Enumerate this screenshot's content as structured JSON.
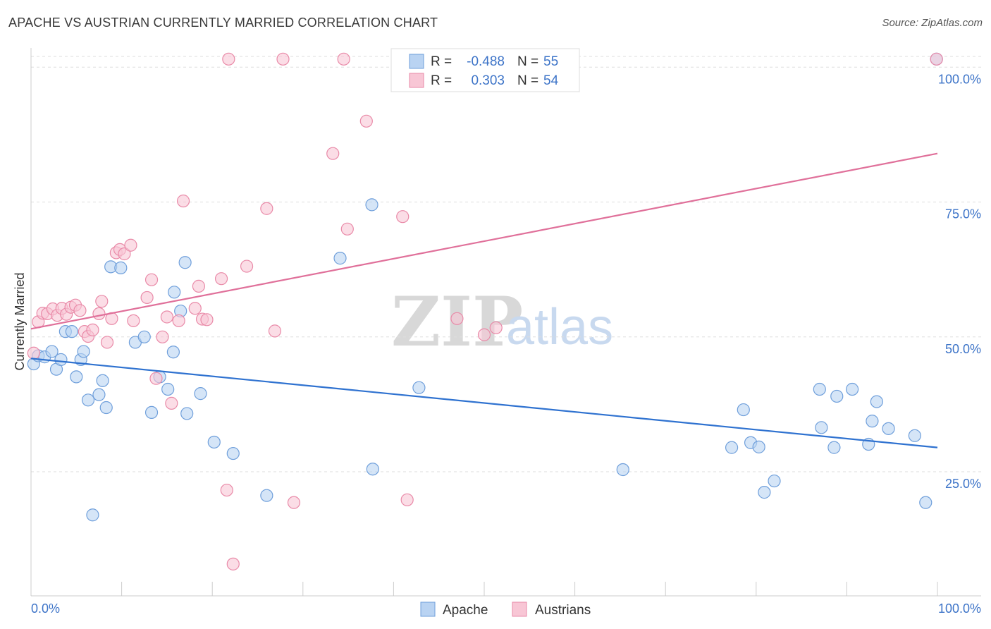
{
  "title": "APACHE VS AUSTRIAN CURRENTLY MARRIED CORRELATION CHART",
  "source": "Source: ZipAtlas.com",
  "watermark": {
    "zip": "ZIP",
    "atlas": "atlas"
  },
  "colors": {
    "apache_fill": "#b9d3f2",
    "apache_stroke": "#6f9fdb",
    "apache_line": "#2f72d0",
    "austrian_fill": "#f8c6d5",
    "austrian_stroke": "#e98aa8",
    "austrian_line": "#e0709a",
    "grid": "#dddddd",
    "tick_text": "#3d74c8"
  },
  "legend": {
    "rows": [
      {
        "r_label": "R =",
        "r_value": "-0.488",
        "n_label": "N =",
        "n_value": "55"
      },
      {
        "r_label": "R =",
        "r_value": "0.303",
        "n_label": "N =",
        "n_value": "54"
      }
    ]
  },
  "chart_data": {
    "type": "scatter",
    "title": "APACHE VS AUSTRIAN CURRENTLY MARRIED CORRELATION CHART",
    "xlabel": "",
    "ylabel": "Currently Married",
    "xlim": [
      0,
      100
    ],
    "ylim": [
      2,
      102
    ],
    "x_tick_labels": [
      "0.0%",
      "100.0%"
    ],
    "y_ticks": [
      25,
      50,
      75,
      100
    ],
    "y_tick_labels": [
      "25.0%",
      "50.0%",
      "75.0%",
      "100.0%"
    ],
    "grid": true,
    "legend_position": "top-center",
    "series": [
      {
        "name": "Apache",
        "color": "#6f9fdb",
        "trend": {
          "x": [
            0,
            100
          ],
          "y": [
            46.0,
            29.5
          ]
        },
        "points": [
          {
            "x": 0.3,
            "y": 45.0
          },
          {
            "x": 0.8,
            "y": 46.5
          },
          {
            "x": 1.5,
            "y": 46.3
          },
          {
            "x": 2.3,
            "y": 47.3
          },
          {
            "x": 2.8,
            "y": 44.0
          },
          {
            "x": 3.3,
            "y": 45.8
          },
          {
            "x": 3.8,
            "y": 51.0
          },
          {
            "x": 4.5,
            "y": 51.0
          },
          {
            "x": 5.0,
            "y": 42.6
          },
          {
            "x": 5.5,
            "y": 45.8
          },
          {
            "x": 5.8,
            "y": 47.3
          },
          {
            "x": 6.3,
            "y": 38.3
          },
          {
            "x": 6.8,
            "y": 17.0
          },
          {
            "x": 7.5,
            "y": 39.3
          },
          {
            "x": 7.9,
            "y": 41.9
          },
          {
            "x": 8.3,
            "y": 36.9
          },
          {
            "x": 8.8,
            "y": 63.0
          },
          {
            "x": 9.9,
            "y": 62.8
          },
          {
            "x": 11.5,
            "y": 49.0
          },
          {
            "x": 12.5,
            "y": 50.0
          },
          {
            "x": 13.3,
            "y": 36.0
          },
          {
            "x": 14.2,
            "y": 42.6
          },
          {
            "x": 15.1,
            "y": 40.3
          },
          {
            "x": 15.7,
            "y": 47.2
          },
          {
            "x": 15.8,
            "y": 58.3
          },
          {
            "x": 16.5,
            "y": 54.8
          },
          {
            "x": 17.0,
            "y": 63.8
          },
          {
            "x": 17.2,
            "y": 35.8
          },
          {
            "x": 18.7,
            "y": 39.5
          },
          {
            "x": 20.2,
            "y": 30.5
          },
          {
            "x": 22.3,
            "y": 28.4
          },
          {
            "x": 26.0,
            "y": 20.6
          },
          {
            "x": 34.1,
            "y": 64.6
          },
          {
            "x": 37.6,
            "y": 74.5
          },
          {
            "x": 37.7,
            "y": 25.5
          },
          {
            "x": 42.8,
            "y": 40.6
          },
          {
            "x": 65.3,
            "y": 25.4
          },
          {
            "x": 78.6,
            "y": 36.5
          },
          {
            "x": 77.3,
            "y": 29.5
          },
          {
            "x": 79.4,
            "y": 30.4
          },
          {
            "x": 80.3,
            "y": 29.6
          },
          {
            "x": 80.9,
            "y": 21.2
          },
          {
            "x": 82.0,
            "y": 23.3
          },
          {
            "x": 87.0,
            "y": 40.3
          },
          {
            "x": 87.2,
            "y": 33.2
          },
          {
            "x": 88.6,
            "y": 29.5
          },
          {
            "x": 88.9,
            "y": 39.0
          },
          {
            "x": 90.6,
            "y": 40.3
          },
          {
            "x": 92.4,
            "y": 30.1
          },
          {
            "x": 92.8,
            "y": 34.4
          },
          {
            "x": 93.3,
            "y": 38.0
          },
          {
            "x": 94.6,
            "y": 33.0
          },
          {
            "x": 97.5,
            "y": 31.7
          },
          {
            "x": 98.7,
            "y": 19.3
          },
          {
            "x": 99.9,
            "y": 101.5
          }
        ]
      },
      {
        "name": "Austrians",
        "color": "#e98aa8",
        "trend": {
          "x": [
            0,
            100
          ],
          "y": [
            51.5,
            84.0
          ]
        },
        "points": [
          {
            "x": 0.3,
            "y": 47.0
          },
          {
            "x": 0.8,
            "y": 52.8
          },
          {
            "x": 1.3,
            "y": 54.4
          },
          {
            "x": 1.8,
            "y": 54.3
          },
          {
            "x": 2.4,
            "y": 55.2
          },
          {
            "x": 2.9,
            "y": 54.0
          },
          {
            "x": 3.4,
            "y": 55.3
          },
          {
            "x": 3.9,
            "y": 54.2
          },
          {
            "x": 4.4,
            "y": 55.5
          },
          {
            "x": 4.9,
            "y": 55.9
          },
          {
            "x": 5.4,
            "y": 54.9
          },
          {
            "x": 5.9,
            "y": 51.0
          },
          {
            "x": 6.3,
            "y": 50.1
          },
          {
            "x": 6.8,
            "y": 51.3
          },
          {
            "x": 7.5,
            "y": 54.3
          },
          {
            "x": 7.8,
            "y": 56.6
          },
          {
            "x": 8.4,
            "y": 49.0
          },
          {
            "x": 8.9,
            "y": 53.4
          },
          {
            "x": 9.4,
            "y": 65.6
          },
          {
            "x": 9.8,
            "y": 66.2
          },
          {
            "x": 10.3,
            "y": 65.4
          },
          {
            "x": 11.0,
            "y": 67.0
          },
          {
            "x": 11.3,
            "y": 53.0
          },
          {
            "x": 12.8,
            "y": 57.3
          },
          {
            "x": 13.3,
            "y": 60.6
          },
          {
            "x": 13.8,
            "y": 42.3
          },
          {
            "x": 14.5,
            "y": 50.0
          },
          {
            "x": 15.0,
            "y": 53.7
          },
          {
            "x": 15.5,
            "y": 37.7
          },
          {
            "x": 16.3,
            "y": 53.0
          },
          {
            "x": 16.8,
            "y": 75.2
          },
          {
            "x": 18.1,
            "y": 55.3
          },
          {
            "x": 18.5,
            "y": 59.4
          },
          {
            "x": 18.9,
            "y": 53.3
          },
          {
            "x": 19.4,
            "y": 53.2
          },
          {
            "x": 21.0,
            "y": 60.8
          },
          {
            "x": 21.6,
            "y": 21.6
          },
          {
            "x": 21.8,
            "y": 101.5
          },
          {
            "x": 22.3,
            "y": 7.9
          },
          {
            "x": 23.8,
            "y": 63.1
          },
          {
            "x": 26.0,
            "y": 73.8
          },
          {
            "x": 26.9,
            "y": 51.1
          },
          {
            "x": 27.8,
            "y": 101.5
          },
          {
            "x": 29.0,
            "y": 19.3
          },
          {
            "x": 33.3,
            "y": 84.0
          },
          {
            "x": 34.5,
            "y": 101.5
          },
          {
            "x": 34.9,
            "y": 70.0
          },
          {
            "x": 37.0,
            "y": 90.0
          },
          {
            "x": 41.0,
            "y": 72.3
          },
          {
            "x": 41.5,
            "y": 19.8
          },
          {
            "x": 47.0,
            "y": 53.4
          },
          {
            "x": 50.0,
            "y": 50.4
          },
          {
            "x": 51.3,
            "y": 51.7
          },
          {
            "x": 99.9,
            "y": 101.5
          }
        ]
      }
    ]
  }
}
